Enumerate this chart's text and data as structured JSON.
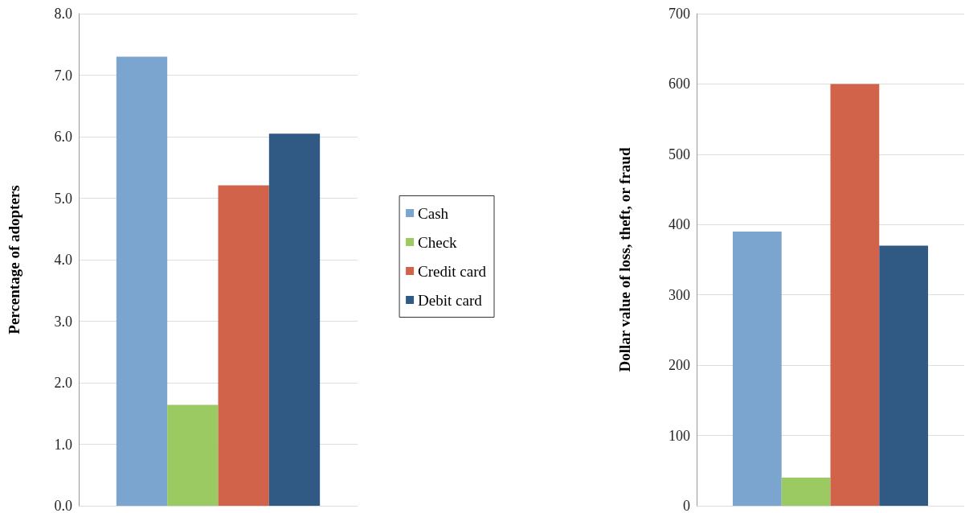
{
  "chart_data": [
    {
      "type": "bar",
      "ylabel": "Percentage of adopters",
      "categories": [
        null
      ],
      "ylim": [
        0,
        8
      ],
      "yticks": [
        {
          "value": 0,
          "label": "0.0"
        },
        {
          "value": 1,
          "label": "1.0"
        },
        {
          "value": 2,
          "label": "2.0"
        },
        {
          "value": 3,
          "label": "3.0"
        },
        {
          "value": 4,
          "label": "4.0"
        },
        {
          "value": 5,
          "label": "5.0"
        },
        {
          "value": 6,
          "label": "6.0"
        },
        {
          "value": 7,
          "label": "7.0"
        },
        {
          "value": 8,
          "label": "8.0"
        }
      ],
      "grid": "y",
      "legend": "right",
      "series": [
        {
          "name": "Cash",
          "color": "#7ba4cf",
          "values": [
            7.3
          ]
        },
        {
          "name": "Check",
          "color": "#9bca63",
          "values": [
            1.64
          ]
        },
        {
          "name": "Credit card",
          "color": "#d1634a",
          "values": [
            5.21
          ]
        },
        {
          "name": "Debit card",
          "color": "#305a84",
          "values": [
            6.05
          ]
        }
      ]
    },
    {
      "type": "bar",
      "ylabel": "Dollar value of loss, theft, or fraud",
      "categories": [
        null
      ],
      "ylim": [
        0,
        700
      ],
      "yticks": [
        0,
        100,
        200,
        300,
        400,
        500,
        600,
        700
      ],
      "grid": "y",
      "series": [
        {
          "color": "#7ba4cf",
          "values": [
            390
          ]
        },
        {
          "color": "#9bca63",
          "values": [
            40
          ]
        },
        {
          "color": "#d1634a",
          "values": [
            600
          ]
        },
        {
          "color": "#305a84",
          "values": [
            370
          ]
        }
      ]
    }
  ]
}
